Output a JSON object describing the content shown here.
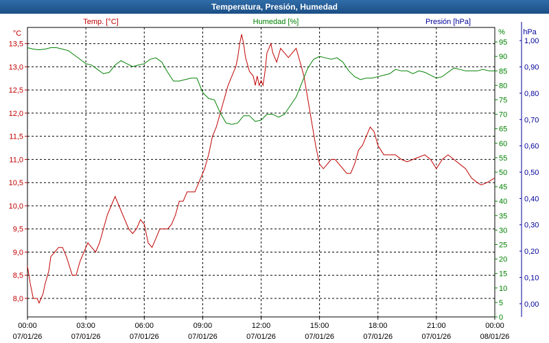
{
  "window": {
    "title": "Temperatura, Presión, Humedad"
  },
  "chart_data": {
    "type": "line",
    "title": "Temperatura, Presión, Humedad",
    "colors": {
      "temp": "#c00000",
      "humidity": "#008000",
      "pressure": "#000099"
    },
    "grid": true,
    "axes": {
      "left": {
        "unit": "°C",
        "series_label": "Temp. [°C]",
        "ticks": [
          "8,0",
          "8,5",
          "9,0",
          "9,5",
          "10,0",
          "10,5",
          "11,0",
          "11,5",
          "12,0",
          "12,5",
          "13,0",
          "13,5"
        ],
        "ylim": [
          7.6,
          13.85
        ]
      },
      "humidity": {
        "unit": "%",
        "series_label": "Humedad [%]",
        "ticks": [
          "0",
          "5",
          "10",
          "15",
          "20",
          "25",
          "30",
          "35",
          "40",
          "45",
          "50",
          "55",
          "60",
          "65",
          "70",
          "75",
          "80",
          "85",
          "90",
          "95"
        ],
        "ylim": [
          0,
          100
        ]
      },
      "right": {
        "unit": "hPa",
        "series_label": "Presión [hPa]",
        "ticks": [
          "0,00",
          "0,10",
          "0,20",
          "0,30",
          "0,40",
          "0,50",
          "0,60",
          "0,70",
          "0,80",
          "0,90",
          "1,00"
        ],
        "ylim": [
          -0.05,
          1.05
        ]
      }
    },
    "x_ticks": [
      {
        "time": "00:00",
        "date": "07/01/26"
      },
      {
        "time": "03:00",
        "date": "07/01/26"
      },
      {
        "time": "06:00",
        "date": "07/01/26"
      },
      {
        "time": "09:00",
        "date": "07/01/26"
      },
      {
        "time": "12:00",
        "date": "07/01/26"
      },
      {
        "time": "15:00",
        "date": "07/01/26"
      },
      {
        "time": "18:00",
        "date": "07/01/26"
      },
      {
        "time": "21:00",
        "date": "07/01/26"
      },
      {
        "time": "00:00",
        "date": "08/01/26"
      }
    ],
    "xlim_hours": [
      0,
      24
    ],
    "series": [
      {
        "name": "Temp. [°C]",
        "axis": "left",
        "color": "#c00000",
        "x": [
          0,
          0.15,
          0.3,
          0.5,
          0.6,
          0.8,
          0.9,
          1.1,
          1.2,
          1.4,
          1.6,
          1.8,
          2.0,
          2.3,
          2.5,
          2.7,
          2.9,
          3.1,
          3.3,
          3.5,
          3.7,
          3.9,
          4.1,
          4.3,
          4.5,
          4.7,
          4.9,
          5.2,
          5.4,
          5.6,
          5.8,
          6.0,
          6.2,
          6.4,
          6.6,
          6.8,
          7.0,
          7.2,
          7.4,
          7.6,
          7.8,
          8.0,
          8.2,
          8.4,
          8.6,
          8.8,
          9.0,
          9.1,
          9.3,
          9.5,
          9.7,
          9.9,
          10.1,
          10.3,
          10.5,
          10.7,
          10.8,
          10.9,
          11.0,
          11.1,
          11.2,
          11.4,
          11.6,
          11.7,
          11.8,
          11.9,
          12.0,
          12.1,
          12.2,
          12.3,
          12.4,
          12.5,
          12.6,
          12.8,
          13.0,
          13.2,
          13.4,
          13.6,
          13.8,
          14.0,
          14.2,
          14.4,
          14.6,
          14.8,
          15.0,
          15.2,
          15.4,
          15.6,
          15.8,
          16.0,
          16.2,
          16.4,
          16.6,
          16.8,
          17.0,
          17.2,
          17.4,
          17.6,
          17.8,
          18.0,
          18.3,
          18.6,
          18.9,
          19.2,
          19.5,
          19.8,
          20.1,
          20.4,
          20.7,
          21.0,
          21.3,
          21.6,
          21.9,
          22.2,
          22.5,
          22.8,
          23.1,
          23.3,
          23.6,
          23.8,
          24.0
        ],
        "values": [
          8.7,
          8.3,
          8.0,
          8.0,
          7.9,
          8.1,
          8.3,
          8.6,
          8.9,
          9.0,
          9.1,
          9.1,
          8.9,
          8.5,
          8.5,
          8.8,
          9.0,
          9.2,
          9.1,
          9.0,
          9.2,
          9.5,
          9.8,
          10.0,
          10.2,
          10.0,
          9.8,
          9.5,
          9.4,
          9.5,
          9.7,
          9.6,
          9.2,
          9.1,
          9.3,
          9.5,
          9.5,
          9.5,
          9.6,
          9.8,
          10.1,
          10.1,
          10.3,
          10.3,
          10.3,
          10.5,
          10.7,
          10.8,
          11.1,
          11.5,
          11.7,
          12.0,
          12.3,
          12.6,
          12.8,
          13.0,
          13.2,
          13.5,
          13.7,
          13.5,
          13.2,
          12.9,
          12.8,
          12.6,
          12.8,
          12.6,
          12.7,
          12.6,
          12.9,
          13.3,
          13.4,
          13.5,
          13.3,
          13.1,
          13.4,
          13.3,
          13.2,
          13.3,
          13.4,
          13.1,
          12.8,
          12.3,
          11.8,
          11.3,
          10.9,
          10.8,
          10.9,
          11.0,
          11.0,
          10.9,
          10.8,
          10.7,
          10.7,
          10.9,
          11.2,
          11.3,
          11.5,
          11.7,
          11.6,
          11.3,
          11.1,
          11.1,
          11.1,
          11.0,
          10.95,
          11.0,
          11.05,
          11.1,
          11.0,
          10.8,
          11.0,
          11.1,
          11.0,
          10.9,
          10.8,
          10.6,
          10.5,
          10.45,
          10.5,
          10.55,
          10.6
        ]
      },
      {
        "name": "Humedad [%]",
        "axis": "humidity",
        "color": "#008000",
        "x": [
          0,
          0.3,
          0.6,
          0.9,
          1.2,
          1.5,
          1.8,
          2.1,
          2.4,
          2.7,
          3.0,
          3.3,
          3.6,
          3.9,
          4.2,
          4.5,
          4.8,
          5.1,
          5.4,
          5.7,
          6.0,
          6.3,
          6.6,
          6.9,
          7.2,
          7.5,
          7.8,
          8.1,
          8.4,
          8.7,
          9.0,
          9.3,
          9.6,
          9.9,
          10.2,
          10.5,
          10.8,
          11.1,
          11.4,
          11.7,
          12.0,
          12.3,
          12.6,
          12.9,
          13.2,
          13.5,
          13.8,
          14.1,
          14.4,
          14.7,
          15.0,
          15.3,
          15.6,
          15.9,
          16.2,
          16.5,
          16.8,
          17.1,
          17.4,
          17.7,
          18.0,
          18.3,
          18.6,
          18.9,
          19.2,
          19.5,
          19.8,
          20.1,
          20.4,
          20.7,
          21.0,
          21.3,
          21.6,
          21.9,
          22.2,
          22.5,
          22.8,
          23.1,
          23.4,
          23.7,
          24.0
        ],
        "values": [
          93,
          92.5,
          92.3,
          92.5,
          93,
          93,
          92.5,
          92,
          90.5,
          89,
          87.5,
          87,
          85.5,
          84,
          84.5,
          87,
          88.5,
          87.5,
          86.5,
          87,
          87.5,
          89,
          89.5,
          88,
          84.5,
          81.5,
          81.5,
          82,
          82.5,
          82.5,
          77.5,
          75.5,
          75,
          70.5,
          67,
          66.5,
          67,
          69.5,
          69.5,
          67.5,
          68,
          70,
          70,
          69,
          70,
          73,
          76,
          81,
          86,
          89,
          90,
          89.5,
          89,
          89.5,
          88,
          85,
          83,
          82,
          82.5,
          82.5,
          83,
          83.5,
          84,
          85.5,
          85,
          85,
          84,
          85,
          84.5,
          83.5,
          82.5,
          83,
          84.5,
          86,
          85.5,
          85,
          85,
          85,
          85.5,
          85,
          85
        ]
      }
    ]
  }
}
